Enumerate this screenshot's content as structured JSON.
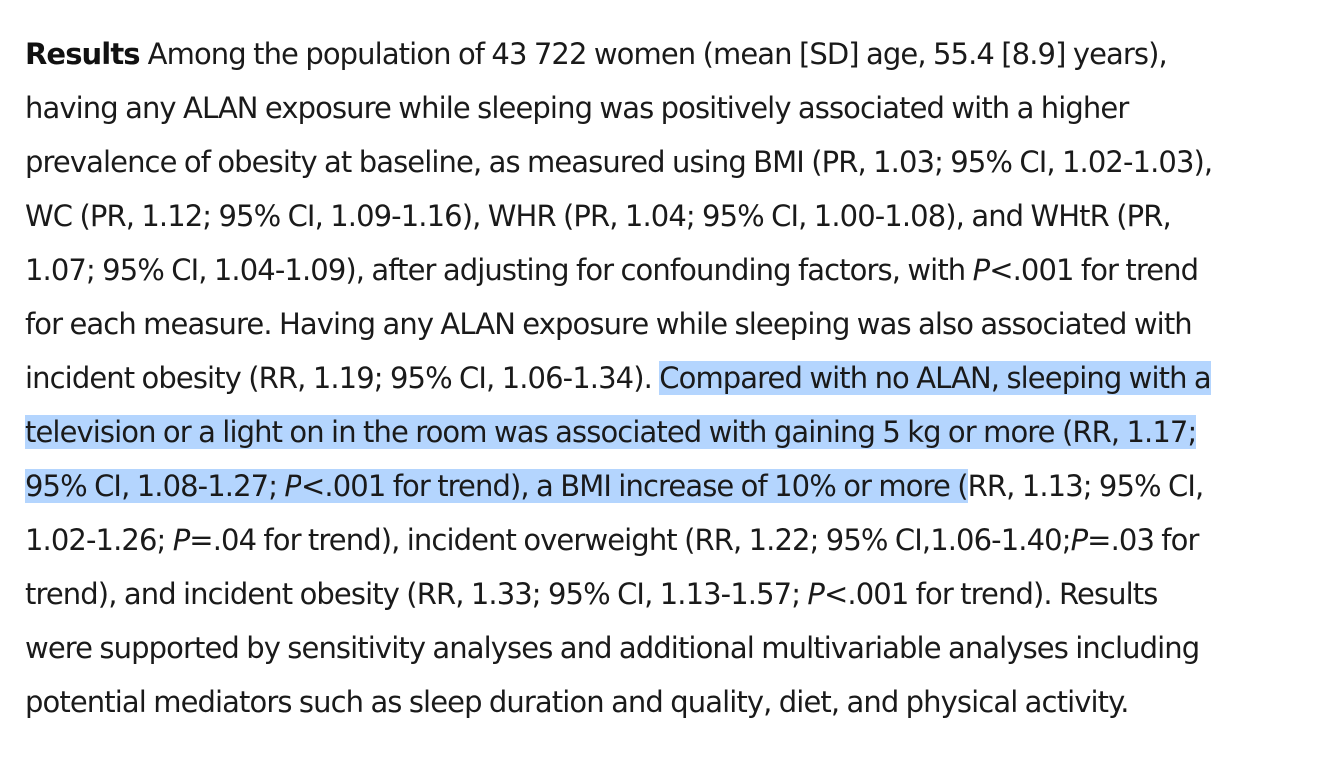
{
  "section_label": "Results",
  "selection_color": "#b4d5fe",
  "lines": [
    [
      {
        "t": "Among the population of 43 722 women (mean [SD] age, 55.4 [8.9] years),"
      }
    ],
    [
      {
        "t": "having any ALAN exposure while sleeping was positively associated with a higher"
      }
    ],
    [
      {
        "t": "prevalence of obesity at baseline, as measured using BMI (PR, 1.03; 95% CI, 1.02-1.03),"
      }
    ],
    [
      {
        "t": "WC (PR, 1.12; 95% CI, 1.09-1.16), WHR (PR, 1.04; 95% CI, 1.00-1.08), and WHtR (PR,"
      }
    ],
    [
      {
        "t": "1.07; 95% CI, 1.04-1.09), after adjusting for confounding factors, with "
      },
      {
        "t": "P",
        "i": true
      },
      {
        "t": "<.001 for trend"
      }
    ],
    [
      {
        "t": "for each measure. Having any ALAN exposure while sleeping was also associated with"
      }
    ],
    [
      {
        "t": "incident obesity (RR, 1.19; 95% CI, 1.06-1.34). "
      },
      {
        "t": "Compared with no ALAN, sleeping with a",
        "h": true
      }
    ],
    [
      {
        "t": "television or a light on in the room was associated with gaining 5 kg or more (RR, 1.17;",
        "h": true
      }
    ],
    [
      {
        "t": "95% CI, 1.08-1.27; ",
        "h": true
      },
      {
        "t": "P",
        "i": true,
        "h": true
      },
      {
        "t": "<.001 for trend), a BMI increase of 10% or more (",
        "h": true
      },
      {
        "t": "RR, 1.13; 95% CI,"
      }
    ],
    [
      {
        "t": "1.02-1.26; "
      },
      {
        "t": "P",
        "i": true
      },
      {
        "t": "=.04 for trend), incident overweight (RR, 1.22; 95% CI,1.06-1.40;"
      },
      {
        "t": "P",
        "i": true
      },
      {
        "t": "=.03 for"
      }
    ],
    [
      {
        "t": "trend), and incident obesity (RR, 1.33; 95% CI, 1.13-1.57; "
      },
      {
        "t": "P",
        "i": true
      },
      {
        "t": "<.001 for trend). Results"
      }
    ],
    [
      {
        "t": "were supported by sensitivity analyses and additional multivariable analyses including"
      }
    ],
    [
      {
        "t": "potential mediators such as sleep duration and quality, diet, and physical activity."
      }
    ]
  ]
}
